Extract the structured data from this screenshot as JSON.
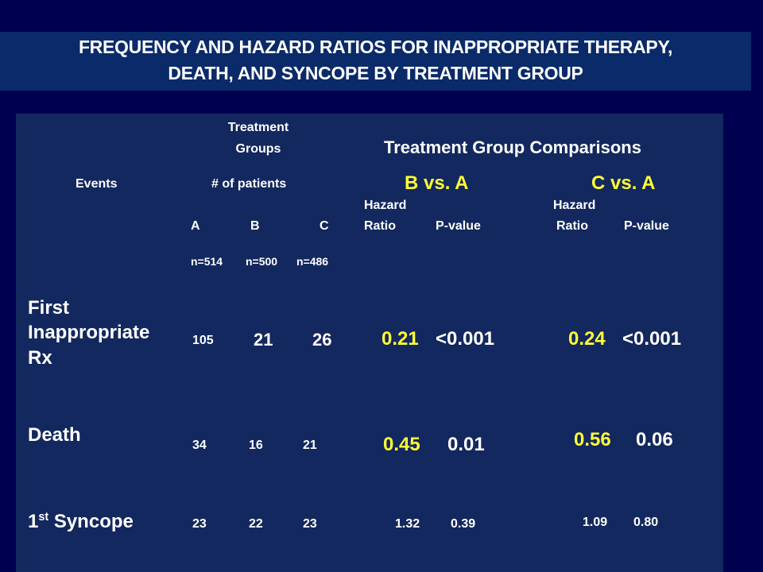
{
  "title": {
    "line1": "FREQUENCY AND HAZARD RATIOS FOR INAPPROPRIATE THERAPY,",
    "line2": "DEATH, AND SYNCOPE BY TREATMENT GROUP"
  },
  "header": {
    "treatment_groups_1": "Treatment",
    "treatment_groups_2": "Groups",
    "comparisons": "Treatment Group Comparisons",
    "events": "Events",
    "num_patients": "# of patients",
    "b_vs_a": "B vs. A",
    "c_vs_a": "C vs. A",
    "hazard": "Hazard",
    "ratio": "Ratio",
    "p_value": "P-value",
    "groups": [
      "A",
      "B",
      "C"
    ],
    "ns": [
      "n=514",
      "n=500",
      "n=486"
    ]
  },
  "rows": [
    {
      "event_lines": [
        "First",
        "Inappropriate",
        "Rx"
      ],
      "counts": [
        "105",
        "21",
        "26"
      ],
      "hr_b": "0.21",
      "p_b": "<0.001",
      "hr_c": "0.24",
      "p_c": "<0.001"
    },
    {
      "event": "Death",
      "counts": [
        "34",
        "16",
        "21"
      ],
      "hr_b": "0.45",
      "p_b": "0.01",
      "hr_c": "0.56",
      "p_c": "0.06"
    },
    {
      "event_prefix": "1",
      "event_sup": "st",
      "event_suffix": " Syncope",
      "counts": [
        "23",
        "22",
        "23"
      ],
      "hr_b": "1.32",
      "p_b": "0.39",
      "hr_c": "1.09",
      "p_c": "0.80"
    }
  ],
  "colors": {
    "background": "#000050",
    "title_band": "#0a2a6a",
    "panel": "#13285e",
    "highlight": "#ffff33"
  }
}
